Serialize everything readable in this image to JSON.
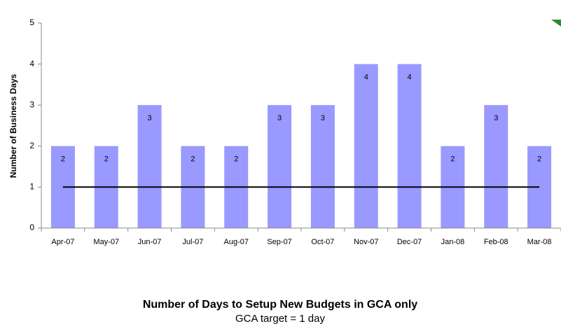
{
  "chart_data": {
    "type": "bar",
    "title": "Number of Days to Setup New Budgets in GCA only",
    "subtitle": "GCA target = 1 day",
    "y_label": "Number of Business Days",
    "categories": [
      "Apr-07",
      "May-07",
      "Jun-07",
      "Jul-07",
      "Aug-07",
      "Sep-07",
      "Oct-07",
      "Nov-07",
      "Dec-07",
      "Jan-08",
      "Feb-08",
      "Mar-08"
    ],
    "series": [
      {
        "type": "bar",
        "color": "#9999ff",
        "values": [
          2,
          2,
          3,
          2,
          2,
          3,
          3,
          4,
          4,
          2,
          3,
          2
        ]
      },
      {
        "type": "line",
        "color": "#000000",
        "values": [
          1,
          1,
          1,
          1,
          1,
          1,
          1,
          1,
          1,
          1,
          1,
          1
        ]
      }
    ],
    "ylim": [
      0,
      5
    ],
    "yticks": [
      0,
      1,
      2,
      3,
      4,
      5
    ],
    "grid": false
  }
}
